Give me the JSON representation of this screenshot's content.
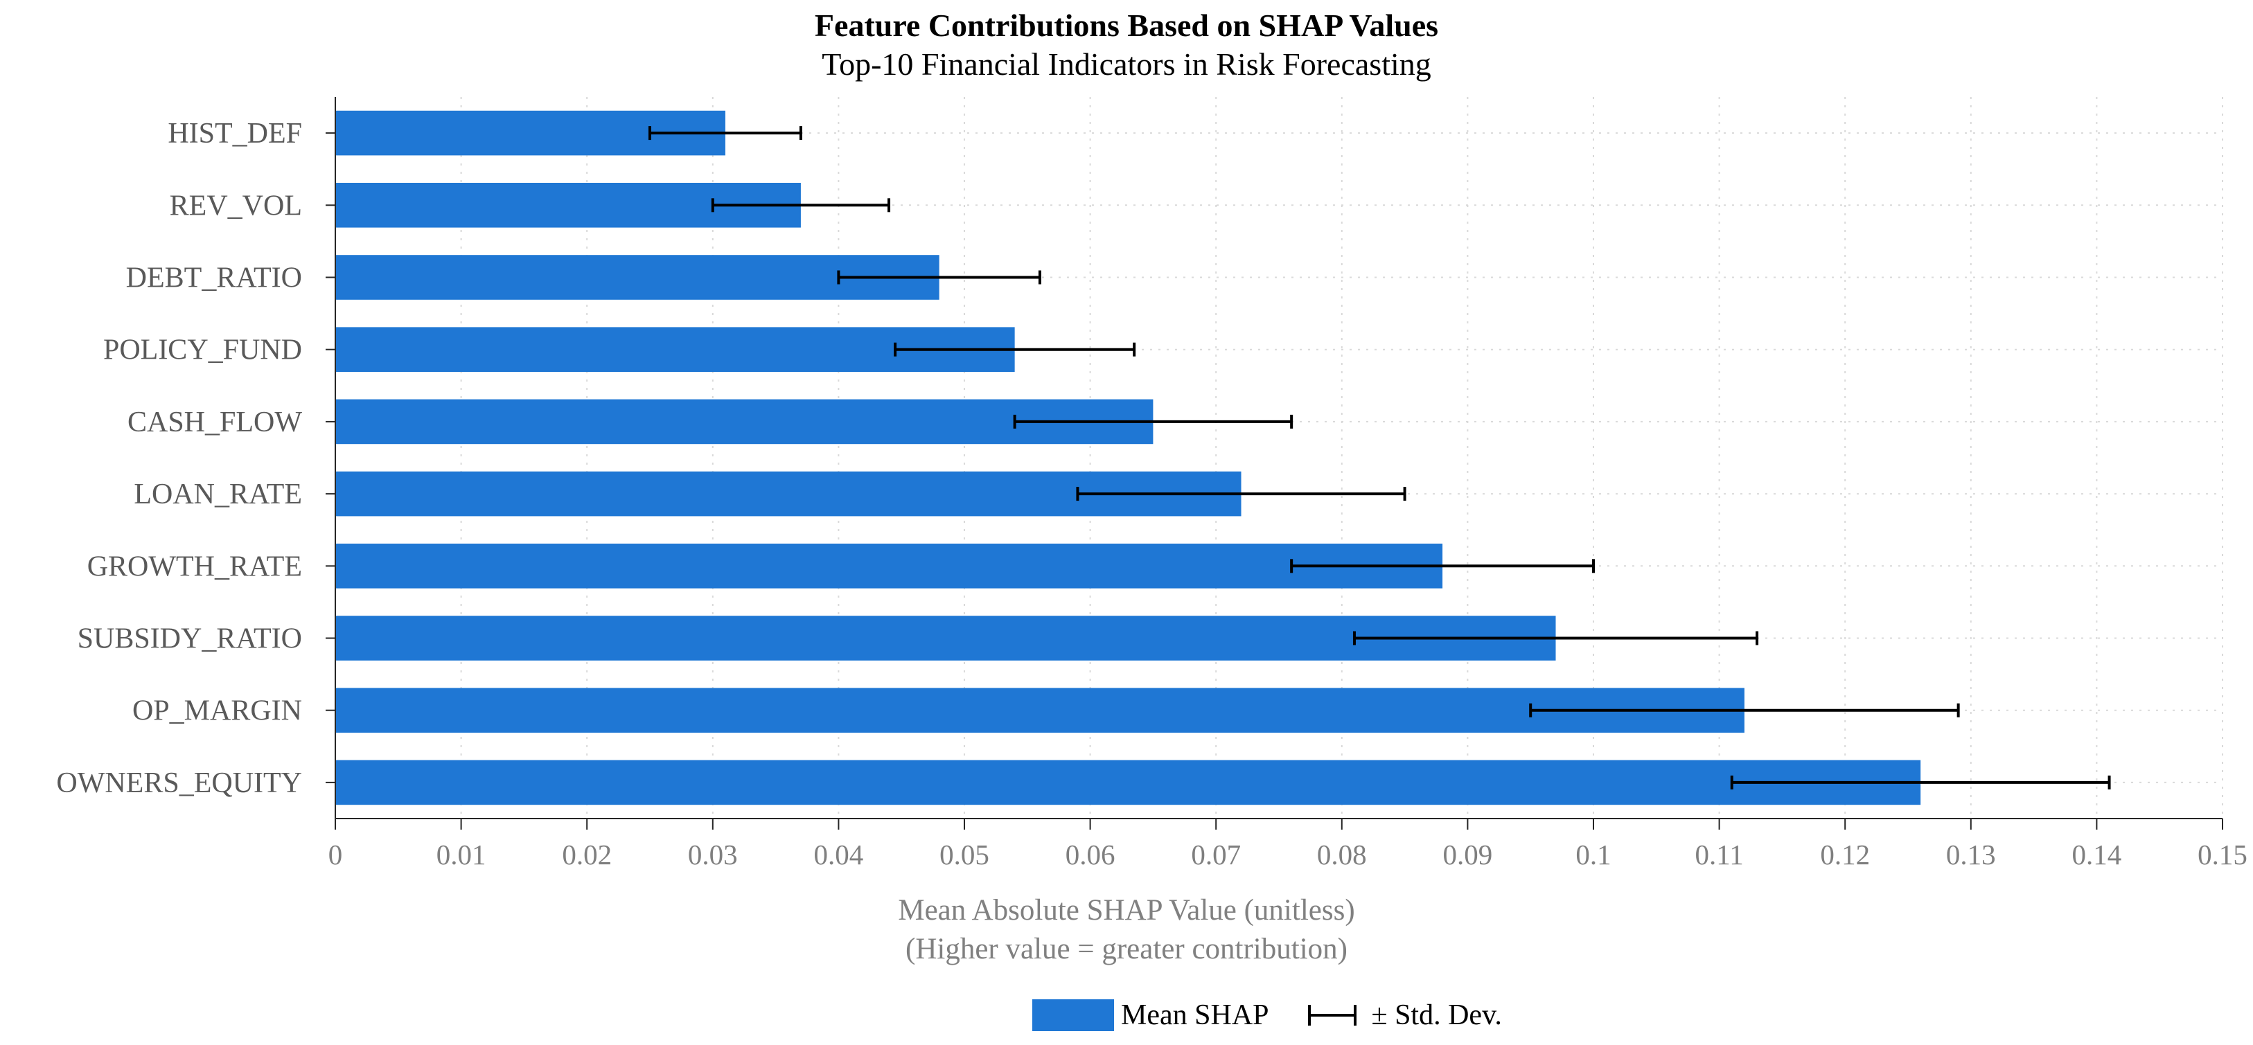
{
  "chart_data": {
    "type": "bar",
    "orientation": "horizontal",
    "title": "Feature Contributions Based on SHAP Values",
    "subtitle": "Top-10 Financial Indicators in Risk Forecasting",
    "xlabel": "Mean Absolute SHAP Value (unitless)",
    "xlabel_note": "(Higher value = greater contribution)",
    "ylabel": "",
    "xlim": [
      0,
      0.15
    ],
    "xticks": [
      0,
      0.01,
      0.02,
      0.03,
      0.04,
      0.05,
      0.06,
      0.07,
      0.08,
      0.09,
      0.1,
      0.11,
      0.12,
      0.13,
      0.14,
      0.15
    ],
    "xtick_labels": [
      "0",
      "0.01",
      "0.02",
      "0.03",
      "0.04",
      "0.05",
      "0.06",
      "0.07",
      "0.08",
      "0.09",
      "0.1",
      "0.11",
      "0.12",
      "0.13",
      "0.14",
      "0.15"
    ],
    "grid": true,
    "categories": [
      "HIST_DEF",
      "REV_VOL",
      "DEBT_RATIO",
      "POLICY_FUND",
      "CASH_FLOW",
      "LOAN_RATE",
      "GROWTH_RATE",
      "SUBSIDY_RATIO",
      "OP_MARGIN",
      "OWNERS_EQUITY"
    ],
    "series": [
      {
        "name": "Mean SHAP",
        "color": "#1f77d4",
        "values": [
          0.031,
          0.037,
          0.048,
          0.054,
          0.065,
          0.072,
          0.088,
          0.097,
          0.112,
          0.126
        ],
        "error": [
          0.006,
          0.007,
          0.008,
          0.0095,
          0.011,
          0.013,
          0.012,
          0.016,
          0.017,
          0.015
        ]
      }
    ],
    "legend": {
      "position": "bottom-center",
      "entries": [
        "Mean SHAP",
        "± Std. Dev."
      ]
    }
  }
}
